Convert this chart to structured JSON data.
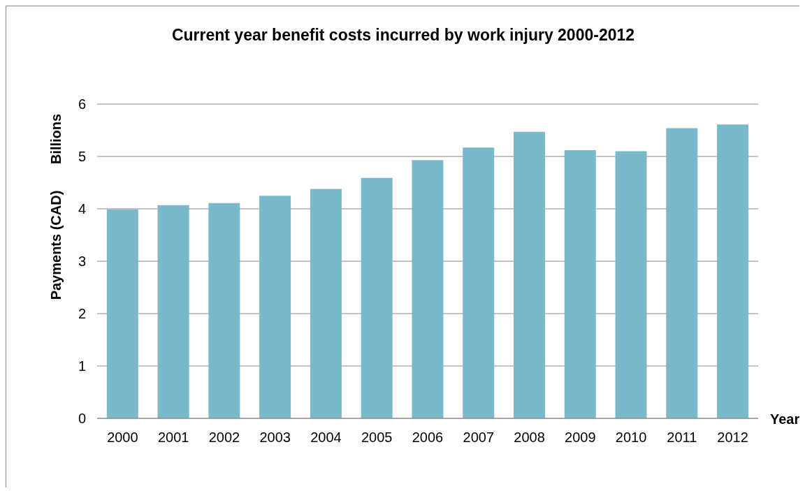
{
  "chart_data": {
    "type": "bar",
    "title": "Current year benefit costs incurred by work injury 2000-2012",
    "xlabel": "Year",
    "ylabel": "Payments (CAD)",
    "annotations": [
      "Billions"
    ],
    "categories": [
      "2000",
      "2001",
      "2002",
      "2003",
      "2004",
      "2005",
      "2006",
      "2007",
      "2008",
      "2009",
      "2010",
      "2011",
      "2012"
    ],
    "values": [
      3.99,
      4.07,
      4.11,
      4.25,
      4.38,
      4.59,
      4.93,
      5.17,
      5.47,
      5.12,
      5.1,
      5.54,
      5.61
    ],
    "color": "#7ab8cc",
    "ylim": [
      0,
      6
    ],
    "yticks": [
      0,
      1,
      2,
      3,
      4,
      5,
      6
    ],
    "grid": "y"
  }
}
